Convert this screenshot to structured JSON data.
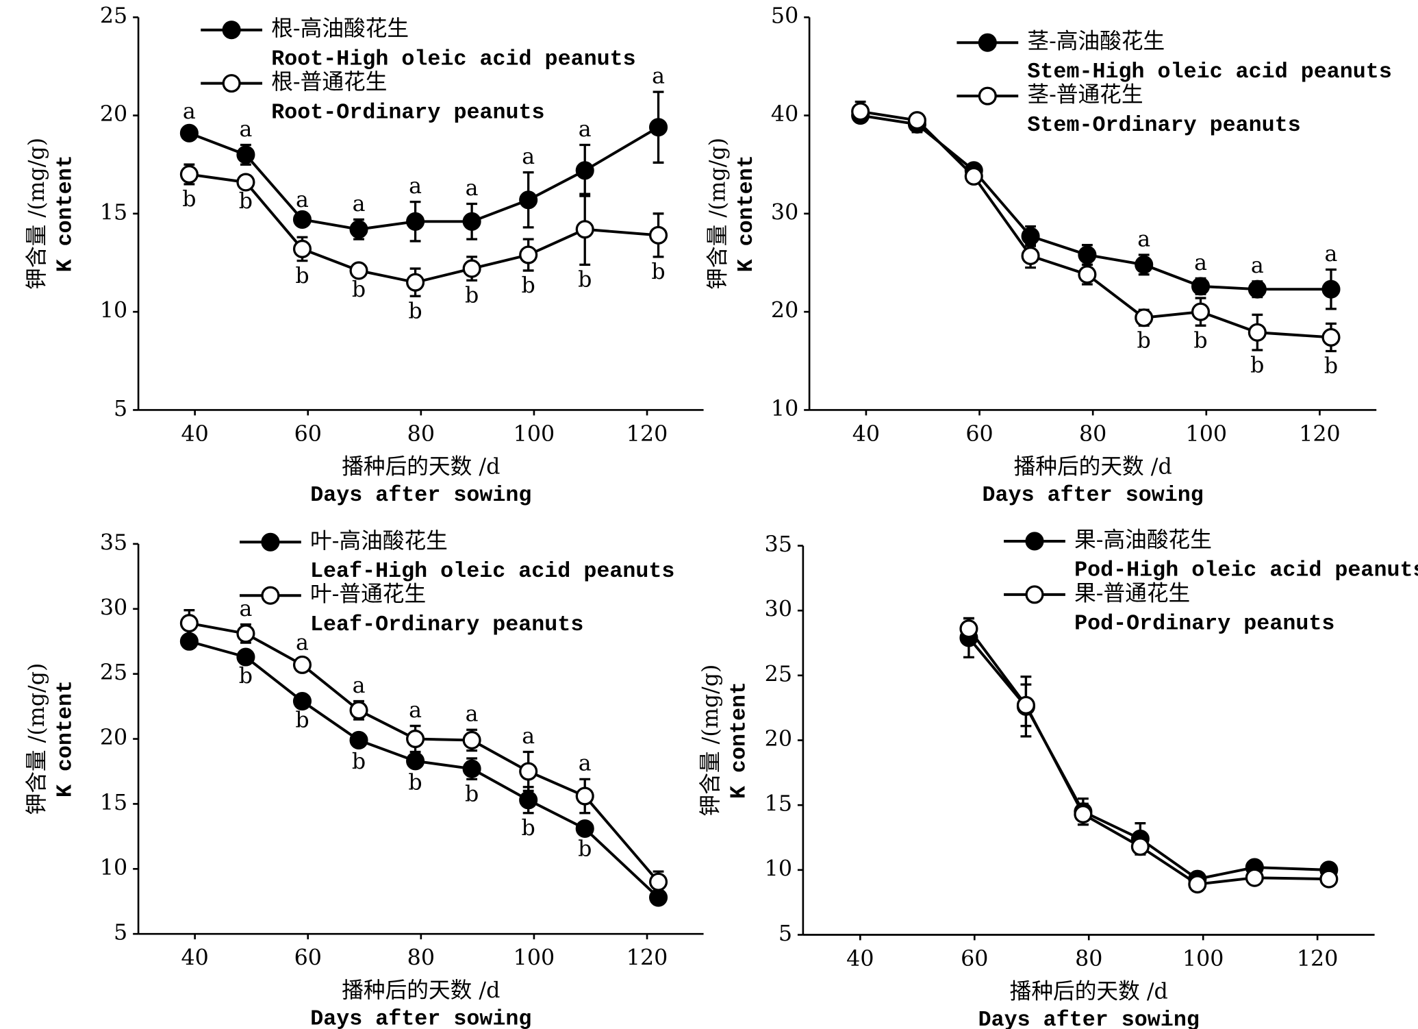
{
  "chart_data": [
    {
      "type": "line",
      "ylabel": "钾含量 /(mg/g)",
      "ylabel_en": "K content",
      "xlabel": "播种后的天数 /d",
      "xlabel_en": "Days after sowing",
      "x": [
        39,
        49,
        59,
        69,
        79,
        89,
        99,
        109,
        122
      ],
      "xlim": [
        30,
        130
      ],
      "xticks": [
        40,
        60,
        80,
        100,
        120
      ],
      "ylim": [
        5,
        25
      ],
      "yticks": [
        5,
        10,
        15,
        20,
        25
      ],
      "series": [
        {
          "name": "根-高油酸花生",
          "name_en": "Root-High oleic acid peanuts",
          "color": "#000000",
          "marker_fill": "#000000",
          "values": [
            19.1,
            18.0,
            14.7,
            14.2,
            14.6,
            14.6,
            15.7,
            17.2,
            19.4
          ],
          "errors": [
            0.3,
            0.5,
            0.2,
            0.5,
            1.0,
            0.9,
            1.4,
            1.3,
            1.8
          ],
          "labels": [
            "a",
            "a",
            "a",
            "a",
            "a",
            "a",
            "a",
            "a",
            "a"
          ]
        },
        {
          "name": "根-普通花生",
          "name_en": "Root-Ordinary peanuts",
          "color": "#000000",
          "marker_fill": "#ffffff",
          "values": [
            17.0,
            16.6,
            13.2,
            12.1,
            11.5,
            12.2,
            12.9,
            14.2,
            13.9
          ],
          "errors": [
            0.5,
            0.2,
            0.6,
            0.2,
            0.7,
            0.6,
            0.8,
            1.8,
            1.1
          ],
          "labels": [
            "b",
            "b",
            "b",
            "b",
            "b",
            "b",
            "b",
            "b",
            "b"
          ]
        }
      ]
    },
    {
      "type": "line",
      "ylabel": "钾含量 /(mg/g)",
      "ylabel_en": "K content",
      "xlabel": "播种后的天数 /d",
      "xlabel_en": "Days after sowing",
      "x": [
        39,
        49,
        59,
        69,
        79,
        89,
        99,
        109,
        122
      ],
      "xlim": [
        30,
        130
      ],
      "xticks": [
        40,
        60,
        80,
        100,
        120
      ],
      "ylim": [
        10,
        50
      ],
      "yticks": [
        10,
        20,
        30,
        40,
        50
      ],
      "series": [
        {
          "name": "茎-高油酸花生",
          "name_en": "Stem-High oleic acid peanuts",
          "color": "#000000",
          "marker_fill": "#000000",
          "values": [
            40.0,
            39.1,
            34.4,
            27.7,
            25.8,
            24.8,
            22.6,
            22.3,
            22.3
          ],
          "errors": [
            0.6,
            0.8,
            0.6,
            1.0,
            1.0,
            1.0,
            0.8,
            0.8,
            2.0
          ],
          "labels": [
            null,
            null,
            null,
            null,
            null,
            "a",
            "a",
            "a",
            "a"
          ]
        },
        {
          "name": "茎-普通花生",
          "name_en": "Stem-Ordinary peanuts",
          "color": "#000000",
          "marker_fill": "#ffffff",
          "values": [
            40.4,
            39.5,
            33.8,
            25.7,
            23.8,
            19.4,
            20.0,
            17.9,
            17.4
          ],
          "errors": [
            1.0,
            0.6,
            0.4,
            1.2,
            1.0,
            0.8,
            1.4,
            1.8,
            1.4
          ],
          "labels": [
            null,
            null,
            null,
            null,
            null,
            "b",
            "b",
            "b",
            "b"
          ]
        }
      ]
    },
    {
      "type": "line",
      "ylabel": "钾含量 /(mg/g)",
      "ylabel_en": "K content",
      "xlabel": "播种后的天数 /d",
      "xlabel_en": "Days after sowing",
      "x": [
        39,
        49,
        59,
        69,
        79,
        89,
        99,
        109,
        122
      ],
      "xlim": [
        30,
        130
      ],
      "xticks": [
        40,
        60,
        80,
        100,
        120
      ],
      "ylim": [
        5,
        35
      ],
      "yticks": [
        5,
        10,
        15,
        20,
        25,
        30,
        35
      ],
      "series": [
        {
          "name": "叶-高油酸花生",
          "name_en": "Leaf-High oleic acid peanuts",
          "color": "#000000",
          "marker_fill": "#000000",
          "values": [
            27.5,
            26.3,
            22.9,
            19.9,
            18.3,
            17.7,
            15.3,
            13.1,
            7.8
          ],
          "errors": [
            0.3,
            0.3,
            0.3,
            0.5,
            0.5,
            0.8,
            1.0,
            0.4,
            0.2
          ],
          "labels": [
            null,
            "b",
            "b",
            "b",
            "b",
            "b",
            "b",
            "b",
            null
          ]
        },
        {
          "name": "叶-普通花生",
          "name_en": "Leaf-Ordinary peanuts",
          "color": "#000000",
          "marker_fill": "#ffffff",
          "values": [
            28.9,
            28.1,
            25.7,
            22.2,
            20.0,
            19.9,
            17.5,
            15.6,
            9.0
          ],
          "errors": [
            1.0,
            0.7,
            0.5,
            0.7,
            1.0,
            0.8,
            1.5,
            1.3,
            0.8
          ],
          "labels": [
            null,
            "a",
            "a",
            "a",
            "a",
            "a",
            "a",
            "a",
            null
          ]
        }
      ]
    },
    {
      "type": "line",
      "ylabel": "钾含量 /(mg/g)",
      "ylabel_en": "K content",
      "xlabel": "播种后的天数 /d",
      "xlabel_en": "Days after sowing",
      "x": [
        59,
        69,
        79,
        89,
        99,
        109,
        122
      ],
      "xlim": [
        30,
        130
      ],
      "xticks": [
        40,
        60,
        80,
        100,
        120
      ],
      "ylim": [
        5,
        35
      ],
      "yticks": [
        5,
        10,
        15,
        20,
        25,
        30,
        35
      ],
      "series": [
        {
          "name": "果-高油酸花生",
          "name_en": "Pod-High oleic acid peanuts",
          "color": "#000000",
          "marker_fill": "#000000",
          "values": [
            27.9,
            22.6,
            14.5,
            12.4,
            9.3,
            10.2,
            10.0
          ],
          "errors": [
            1.5,
            2.3,
            1.0,
            1.2,
            0.4,
            0.4,
            0.3
          ]
        },
        {
          "name": "果-普通花生",
          "name_en": "Pod-Ordinary peanuts",
          "color": "#000000",
          "marker_fill": "#ffffff",
          "values": [
            28.6,
            22.7,
            14.3,
            11.8,
            8.9,
            9.4,
            9.3
          ],
          "errors": [
            0.8,
            1.6,
            0.8,
            0.6,
            0.3,
            0.3,
            0.3
          ]
        }
      ]
    }
  ]
}
